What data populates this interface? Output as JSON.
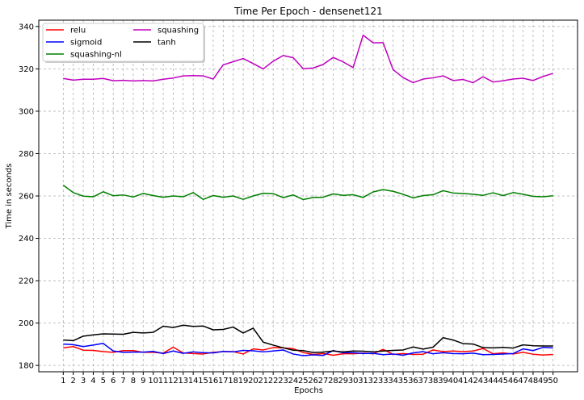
{
  "chart_data": {
    "type": "line",
    "title": "Time Per Epoch - densenet121",
    "xlabel": "Epochs",
    "ylabel": "Time in seconds",
    "x": [
      1,
      2,
      3,
      4,
      5,
      6,
      7,
      8,
      9,
      10,
      11,
      12,
      13,
      14,
      15,
      16,
      17,
      18,
      19,
      20,
      21,
      22,
      23,
      24,
      25,
      26,
      27,
      28,
      29,
      30,
      31,
      32,
      33,
      34,
      35,
      36,
      37,
      38,
      39,
      40,
      41,
      42,
      43,
      44,
      45,
      46,
      47,
      48,
      49,
      50
    ],
    "ylim": [
      177,
      343
    ],
    "yticks": [
      180,
      200,
      220,
      240,
      260,
      280,
      300,
      320,
      340
    ],
    "grid": true,
    "legend_position": "top-left",
    "series": [
      {
        "name": "relu",
        "color": "#ff0000",
        "values": [
          188.3,
          188.9,
          187.2,
          187.1,
          186.5,
          186.2,
          187.0,
          187.0,
          186.2,
          186.2,
          185.8,
          188.6,
          185.9,
          185.6,
          185.4,
          186.2,
          186.5,
          186.5,
          185.4,
          187.8,
          187.3,
          188.4,
          188.3,
          187.9,
          186.1,
          185.2,
          185.6,
          184.8,
          185.5,
          185.5,
          185.8,
          185.5,
          187.6,
          185.2,
          185.6,
          185.2,
          185.3,
          187.3,
          186.5,
          186.8,
          186.5,
          186.8,
          188.0,
          185.5,
          185.9,
          185.4,
          186.2,
          185.3,
          184.9,
          185.2
        ]
      },
      {
        "name": "sigmoid",
        "color": "#0000ff",
        "values": [
          190.1,
          189.8,
          188.9,
          189.6,
          190.4,
          186.8,
          186.2,
          186.3,
          186.3,
          186.6,
          185.6,
          186.8,
          185.7,
          186.4,
          186.0,
          185.9,
          186.6,
          186.4,
          187.1,
          186.9,
          186.4,
          186.8,
          187.3,
          185.4,
          184.6,
          185.0,
          184.7,
          187.0,
          186.0,
          186.0,
          185.6,
          185.7,
          185.1,
          185.4,
          184.8,
          185.9,
          186.5,
          185.5,
          186.0,
          185.6,
          185.5,
          185.8,
          185.1,
          185.2,
          185.4,
          185.6,
          187.8,
          187.0,
          188.5,
          188.3
        ]
      },
      {
        "name": "squashing-nl",
        "color": "#008000",
        "values": [
          265.1,
          261.6,
          259.9,
          259.6,
          262.0,
          260.1,
          260.5,
          259.5,
          261.2,
          260.2,
          259.4,
          260.0,
          259.6,
          261.6,
          258.4,
          260.2,
          259.4,
          260.0,
          258.4,
          260.0,
          261.3,
          261.1,
          259.2,
          260.5,
          258.3,
          259.3,
          259.4,
          261.0,
          260.3,
          260.6,
          259.3,
          261.9,
          263.0,
          262.2,
          260.8,
          259.1,
          260.2,
          260.6,
          262.5,
          261.4,
          261.2,
          260.8,
          260.3,
          261.5,
          260.2,
          261.6,
          260.8,
          259.8,
          259.6,
          260.1
        ]
      },
      {
        "name": "squashing",
        "color": "#bf00bf",
        "values": [
          315.5,
          314.7,
          315.1,
          315.1,
          315.5,
          314.4,
          314.6,
          314.3,
          314.5,
          314.3,
          315.1,
          315.7,
          316.7,
          316.8,
          316.7,
          315.2,
          321.9,
          323.4,
          324.9,
          322.5,
          320.0,
          323.6,
          326.3,
          325.3,
          320.1,
          320.4,
          322.1,
          325.4,
          323.3,
          320.6,
          335.9,
          332.3,
          332.4,
          319.6,
          315.9,
          313.5,
          315.2,
          315.8,
          316.7,
          314.5,
          315.0,
          313.5,
          316.3,
          313.8,
          314.4,
          315.2,
          315.6,
          314.5,
          316.4,
          317.9
        ]
      },
      {
        "name": "tanh",
        "color": "#000000",
        "values": [
          192.0,
          191.7,
          193.8,
          194.4,
          194.9,
          194.8,
          194.7,
          195.6,
          195.3,
          195.6,
          198.5,
          197.9,
          199.0,
          198.4,
          198.6,
          196.8,
          197.0,
          198.1,
          195.3,
          197.6,
          191.0,
          189.6,
          188.3,
          187.2,
          187.0,
          186.1,
          186.3,
          186.8,
          186.4,
          186.8,
          186.7,
          186.4,
          186.8,
          187.1,
          187.3,
          188.7,
          187.7,
          188.6,
          193.1,
          192.0,
          190.3,
          190.1,
          188.4,
          188.3,
          188.5,
          188.2,
          189.7,
          189.3,
          189.2,
          189.2
        ]
      }
    ]
  }
}
